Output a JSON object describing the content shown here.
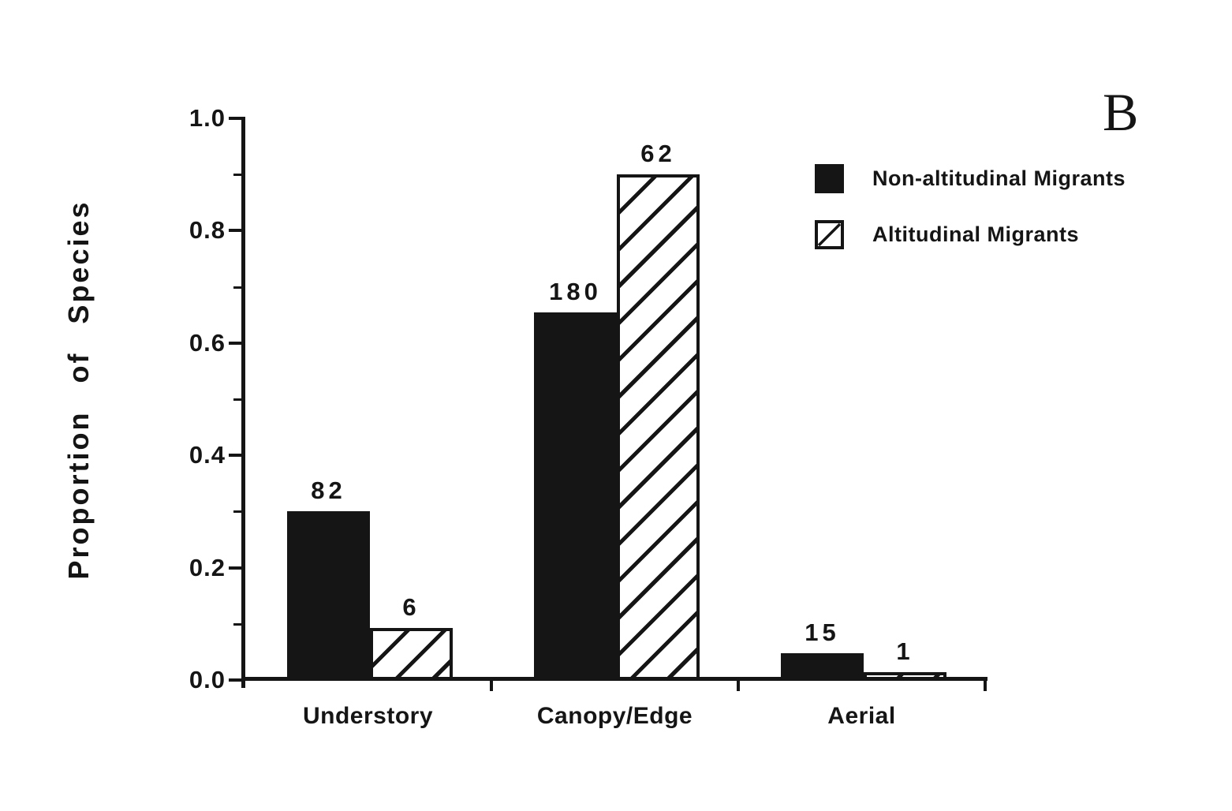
{
  "figure": {
    "panel_label": "B",
    "background_color": "#ffffff",
    "ink_color": "#151515"
  },
  "chart_data": {
    "type": "bar",
    "title": "",
    "xlabel": "",
    "ylabel": "Proportion of Species",
    "categories": [
      "Understory",
      "Canopy/Edge",
      "Aerial"
    ],
    "series": [
      {
        "name": "Non-altitudinal Migrants",
        "style": "solid-black",
        "counts": [
          82,
          180,
          15
        ],
        "proportions": [
          0.3,
          0.655,
          0.048
        ]
      },
      {
        "name": "Altitudinal Migrants",
        "style": "diagonal-hatch",
        "counts": [
          6,
          62,
          1
        ],
        "proportions": [
          0.093,
          0.9,
          0.009
        ]
      }
    ],
    "bar_value_labels": [
      [
        "82",
        "180",
        "15"
      ],
      [
        "6",
        "62",
        "1"
      ]
    ],
    "ylim": [
      0,
      1.0
    ],
    "yticks": [
      0.0,
      0.2,
      0.4,
      0.6,
      0.8,
      1.0
    ],
    "ytick_labels": [
      "0.0",
      "0.2",
      "0.4",
      "0.6",
      "0.8",
      "1.0"
    ],
    "minor_tick_step": 0.1,
    "grid": false,
    "legend_position": "upper-right"
  }
}
